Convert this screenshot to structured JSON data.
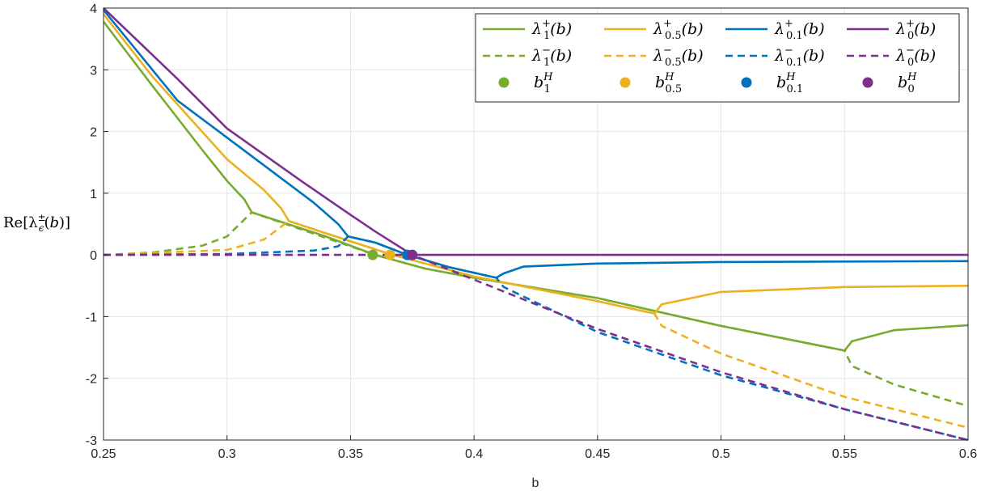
{
  "chart_data": {
    "type": "line",
    "title": "",
    "xlabel": "b",
    "ylabel": "Re[λ±ε(b)]",
    "xlim": [
      0.25,
      0.6
    ],
    "ylim": [
      -3,
      4
    ],
    "grid": true,
    "legend_position": "top-right",
    "x_ticks": [
      "0.25",
      "0.3",
      "0.35",
      "0.4",
      "0.45",
      "0.5",
      "0.55",
      "0.6"
    ],
    "y_ticks": [
      "-3",
      "-2",
      "-1",
      "0",
      "1",
      "2",
      "3",
      "4"
    ],
    "colors": {
      "eps1": "#77ac30",
      "eps05": "#edb120",
      "eps01": "#0072bd",
      "eps0": "#7e2f8e",
      "grid": "#e5e5e5",
      "axis": "#262626"
    },
    "legend": [
      {
        "key": "lp1",
        "label": "λ1+(b)",
        "base": "λ",
        "sub": "1",
        "sup": "+",
        "arg": "(b)",
        "style": "solid",
        "color": "#77ac30"
      },
      {
        "key": "lp05",
        "label": "λ0.5+(b)",
        "base": "λ",
        "sub": "0.5",
        "sup": "+",
        "arg": "(b)",
        "style": "solid",
        "color": "#edb120"
      },
      {
        "key": "lp01",
        "label": "λ0.1+(b)",
        "base": "λ",
        "sub": "0.1",
        "sup": "+",
        "arg": "(b)",
        "style": "solid",
        "color": "#0072bd"
      },
      {
        "key": "lp0",
        "label": "λ0+(b)",
        "base": "λ",
        "sub": "0",
        "sup": "+",
        "arg": "(b)",
        "style": "solid",
        "color": "#7e2f8e"
      },
      {
        "key": "lm1",
        "label": "λ1−(b)",
        "base": "λ",
        "sub": "1",
        "sup": "−",
        "arg": "(b)",
        "style": "dashed",
        "color": "#77ac30"
      },
      {
        "key": "lm05",
        "label": "λ0.5−(b)",
        "base": "λ",
        "sub": "0.5",
        "sup": "−",
        "arg": "(b)",
        "style": "dashed",
        "color": "#edb120"
      },
      {
        "key": "lm01",
        "label": "λ0.1−(b)",
        "base": "λ",
        "sub": "0.1",
        "sup": "−",
        "arg": "(b)",
        "style": "dashed",
        "color": "#0072bd"
      },
      {
        "key": "lm0",
        "label": "λ0−(b)",
        "base": "λ",
        "sub": "0",
        "sup": "−",
        "arg": "(b)",
        "style": "dashed",
        "color": "#7e2f8e"
      },
      {
        "key": "bh1",
        "label": "b1H",
        "base": "b",
        "sub": "1",
        "sup": "H",
        "arg": "",
        "style": "marker",
        "color": "#77ac30"
      },
      {
        "key": "bh05",
        "label": "b0.5H",
        "base": "b",
        "sub": "0.5",
        "sup": "H",
        "arg": "",
        "style": "marker",
        "color": "#edb120"
      },
      {
        "key": "bh01",
        "label": "b0.1H",
        "base": "b",
        "sub": "0.1",
        "sup": "H",
        "arg": "",
        "style": "marker",
        "color": "#0072bd"
      },
      {
        "key": "bh0",
        "label": "b0H",
        "base": "b",
        "sub": "0",
        "sup": "H",
        "arg": "",
        "style": "marker",
        "color": "#7e2f8e"
      }
    ],
    "series": [
      {
        "name": "λ1+(b)",
        "color": "#77ac30",
        "style": "solid",
        "points": [
          [
            0.25,
            3.78
          ],
          [
            0.27,
            2.73
          ],
          [
            0.29,
            1.7
          ],
          [
            0.3,
            1.2
          ],
          [
            0.307,
            0.9
          ],
          [
            0.31,
            0.69
          ],
          [
            0.32,
            0.56
          ],
          [
            0.34,
            0.3
          ],
          [
            0.36,
            0.0
          ],
          [
            0.38,
            -0.22
          ],
          [
            0.4,
            -0.37
          ],
          [
            0.45,
            -0.7
          ],
          [
            0.5,
            -1.15
          ],
          [
            0.54,
            -1.47
          ],
          [
            0.55,
            -1.55
          ],
          [
            0.553,
            -1.4
          ],
          [
            0.57,
            -1.22
          ],
          [
            0.6,
            -1.14
          ]
        ]
      },
      {
        "name": "λ1−(b)",
        "color": "#77ac30",
        "style": "dashed",
        "points": [
          [
            0.25,
            0.0
          ],
          [
            0.27,
            0.04
          ],
          [
            0.29,
            0.15
          ],
          [
            0.3,
            0.3
          ],
          [
            0.31,
            0.69
          ],
          [
            0.36,
            0.0
          ],
          [
            0.38,
            -0.22
          ],
          [
            0.4,
            -0.37
          ],
          [
            0.45,
            -0.7
          ],
          [
            0.5,
            -1.15
          ],
          [
            0.54,
            -1.47
          ],
          [
            0.55,
            -1.55
          ],
          [
            0.553,
            -1.8
          ],
          [
            0.57,
            -2.1
          ],
          [
            0.6,
            -2.45
          ]
        ]
      },
      {
        "name": "λ0.5+(b)",
        "color": "#edb120",
        "style": "solid",
        "points": [
          [
            0.25,
            3.9
          ],
          [
            0.27,
            2.88
          ],
          [
            0.3,
            1.55
          ],
          [
            0.315,
            1.05
          ],
          [
            0.322,
            0.75
          ],
          [
            0.325,
            0.55
          ],
          [
            0.34,
            0.35
          ],
          [
            0.367,
            0.0
          ],
          [
            0.4,
            -0.35
          ],
          [
            0.45,
            -0.75
          ],
          [
            0.473,
            -0.95
          ],
          [
            0.476,
            -0.8
          ],
          [
            0.5,
            -0.6
          ],
          [
            0.55,
            -0.52
          ],
          [
            0.6,
            -0.5
          ]
        ]
      },
      {
        "name": "λ0.5−(b)",
        "color": "#edb120",
        "style": "dashed",
        "points": [
          [
            0.25,
            0.0
          ],
          [
            0.3,
            0.08
          ],
          [
            0.315,
            0.25
          ],
          [
            0.325,
            0.55
          ],
          [
            0.34,
            0.35
          ],
          [
            0.367,
            0.0
          ],
          [
            0.4,
            -0.35
          ],
          [
            0.45,
            -0.75
          ],
          [
            0.473,
            -0.95
          ],
          [
            0.476,
            -1.15
          ],
          [
            0.5,
            -1.6
          ],
          [
            0.55,
            -2.3
          ],
          [
            0.6,
            -2.8
          ]
        ]
      },
      {
        "name": "λ0.1+(b)",
        "color": "#0072bd",
        "style": "solid",
        "points": [
          [
            0.25,
            3.97
          ],
          [
            0.28,
            2.5
          ],
          [
            0.31,
            1.6
          ],
          [
            0.335,
            0.85
          ],
          [
            0.345,
            0.5
          ],
          [
            0.349,
            0.3
          ],
          [
            0.36,
            0.2
          ],
          [
            0.373,
            0.0
          ],
          [
            0.39,
            -0.2
          ],
          [
            0.409,
            -0.37
          ],
          [
            0.412,
            -0.3
          ],
          [
            0.42,
            -0.19
          ],
          [
            0.45,
            -0.14
          ],
          [
            0.5,
            -0.115
          ],
          [
            0.6,
            -0.1
          ]
        ]
      },
      {
        "name": "λ0.1−(b)",
        "color": "#0072bd",
        "style": "dashed",
        "points": [
          [
            0.25,
            0.0
          ],
          [
            0.3,
            0.015
          ],
          [
            0.335,
            0.07
          ],
          [
            0.345,
            0.14
          ],
          [
            0.349,
            0.3
          ],
          [
            0.36,
            0.2
          ],
          [
            0.373,
            0.0
          ],
          [
            0.39,
            -0.2
          ],
          [
            0.409,
            -0.37
          ],
          [
            0.412,
            -0.52
          ],
          [
            0.45,
            -1.25
          ],
          [
            0.5,
            -1.95
          ],
          [
            0.55,
            -2.5
          ],
          [
            0.6,
            -3.0
          ]
        ]
      },
      {
        "name": "λ0+(b)",
        "color": "#7e2f8e",
        "style": "solid",
        "points": [
          [
            0.25,
            4.0
          ],
          [
            0.28,
            2.85
          ],
          [
            0.3,
            2.05
          ],
          [
            0.33,
            1.2
          ],
          [
            0.35,
            0.65
          ],
          [
            0.36,
            0.38
          ],
          [
            0.375,
            0.0
          ],
          [
            0.6,
            0.0
          ]
        ]
      },
      {
        "name": "λ0−(b)",
        "color": "#7e2f8e",
        "style": "dashed",
        "points": [
          [
            0.25,
            0.0
          ],
          [
            0.375,
            0.0
          ],
          [
            0.4,
            -0.4
          ],
          [
            0.45,
            -1.2
          ],
          [
            0.5,
            -1.9
          ],
          [
            0.55,
            -2.5
          ],
          [
            0.6,
            -3.0
          ]
        ]
      }
    ],
    "markers": [
      {
        "name": "b1H",
        "x": 0.359,
        "y": 0.0,
        "color": "#77ac30"
      },
      {
        "name": "b0.5H",
        "x": 0.366,
        "y": 0.0,
        "color": "#edb120"
      },
      {
        "name": "b0.1H",
        "x": 0.373,
        "y": 0.0,
        "color": "#0072bd"
      },
      {
        "name": "b0H",
        "x": 0.375,
        "y": 0.0,
        "color": "#7e2f8e"
      }
    ]
  }
}
